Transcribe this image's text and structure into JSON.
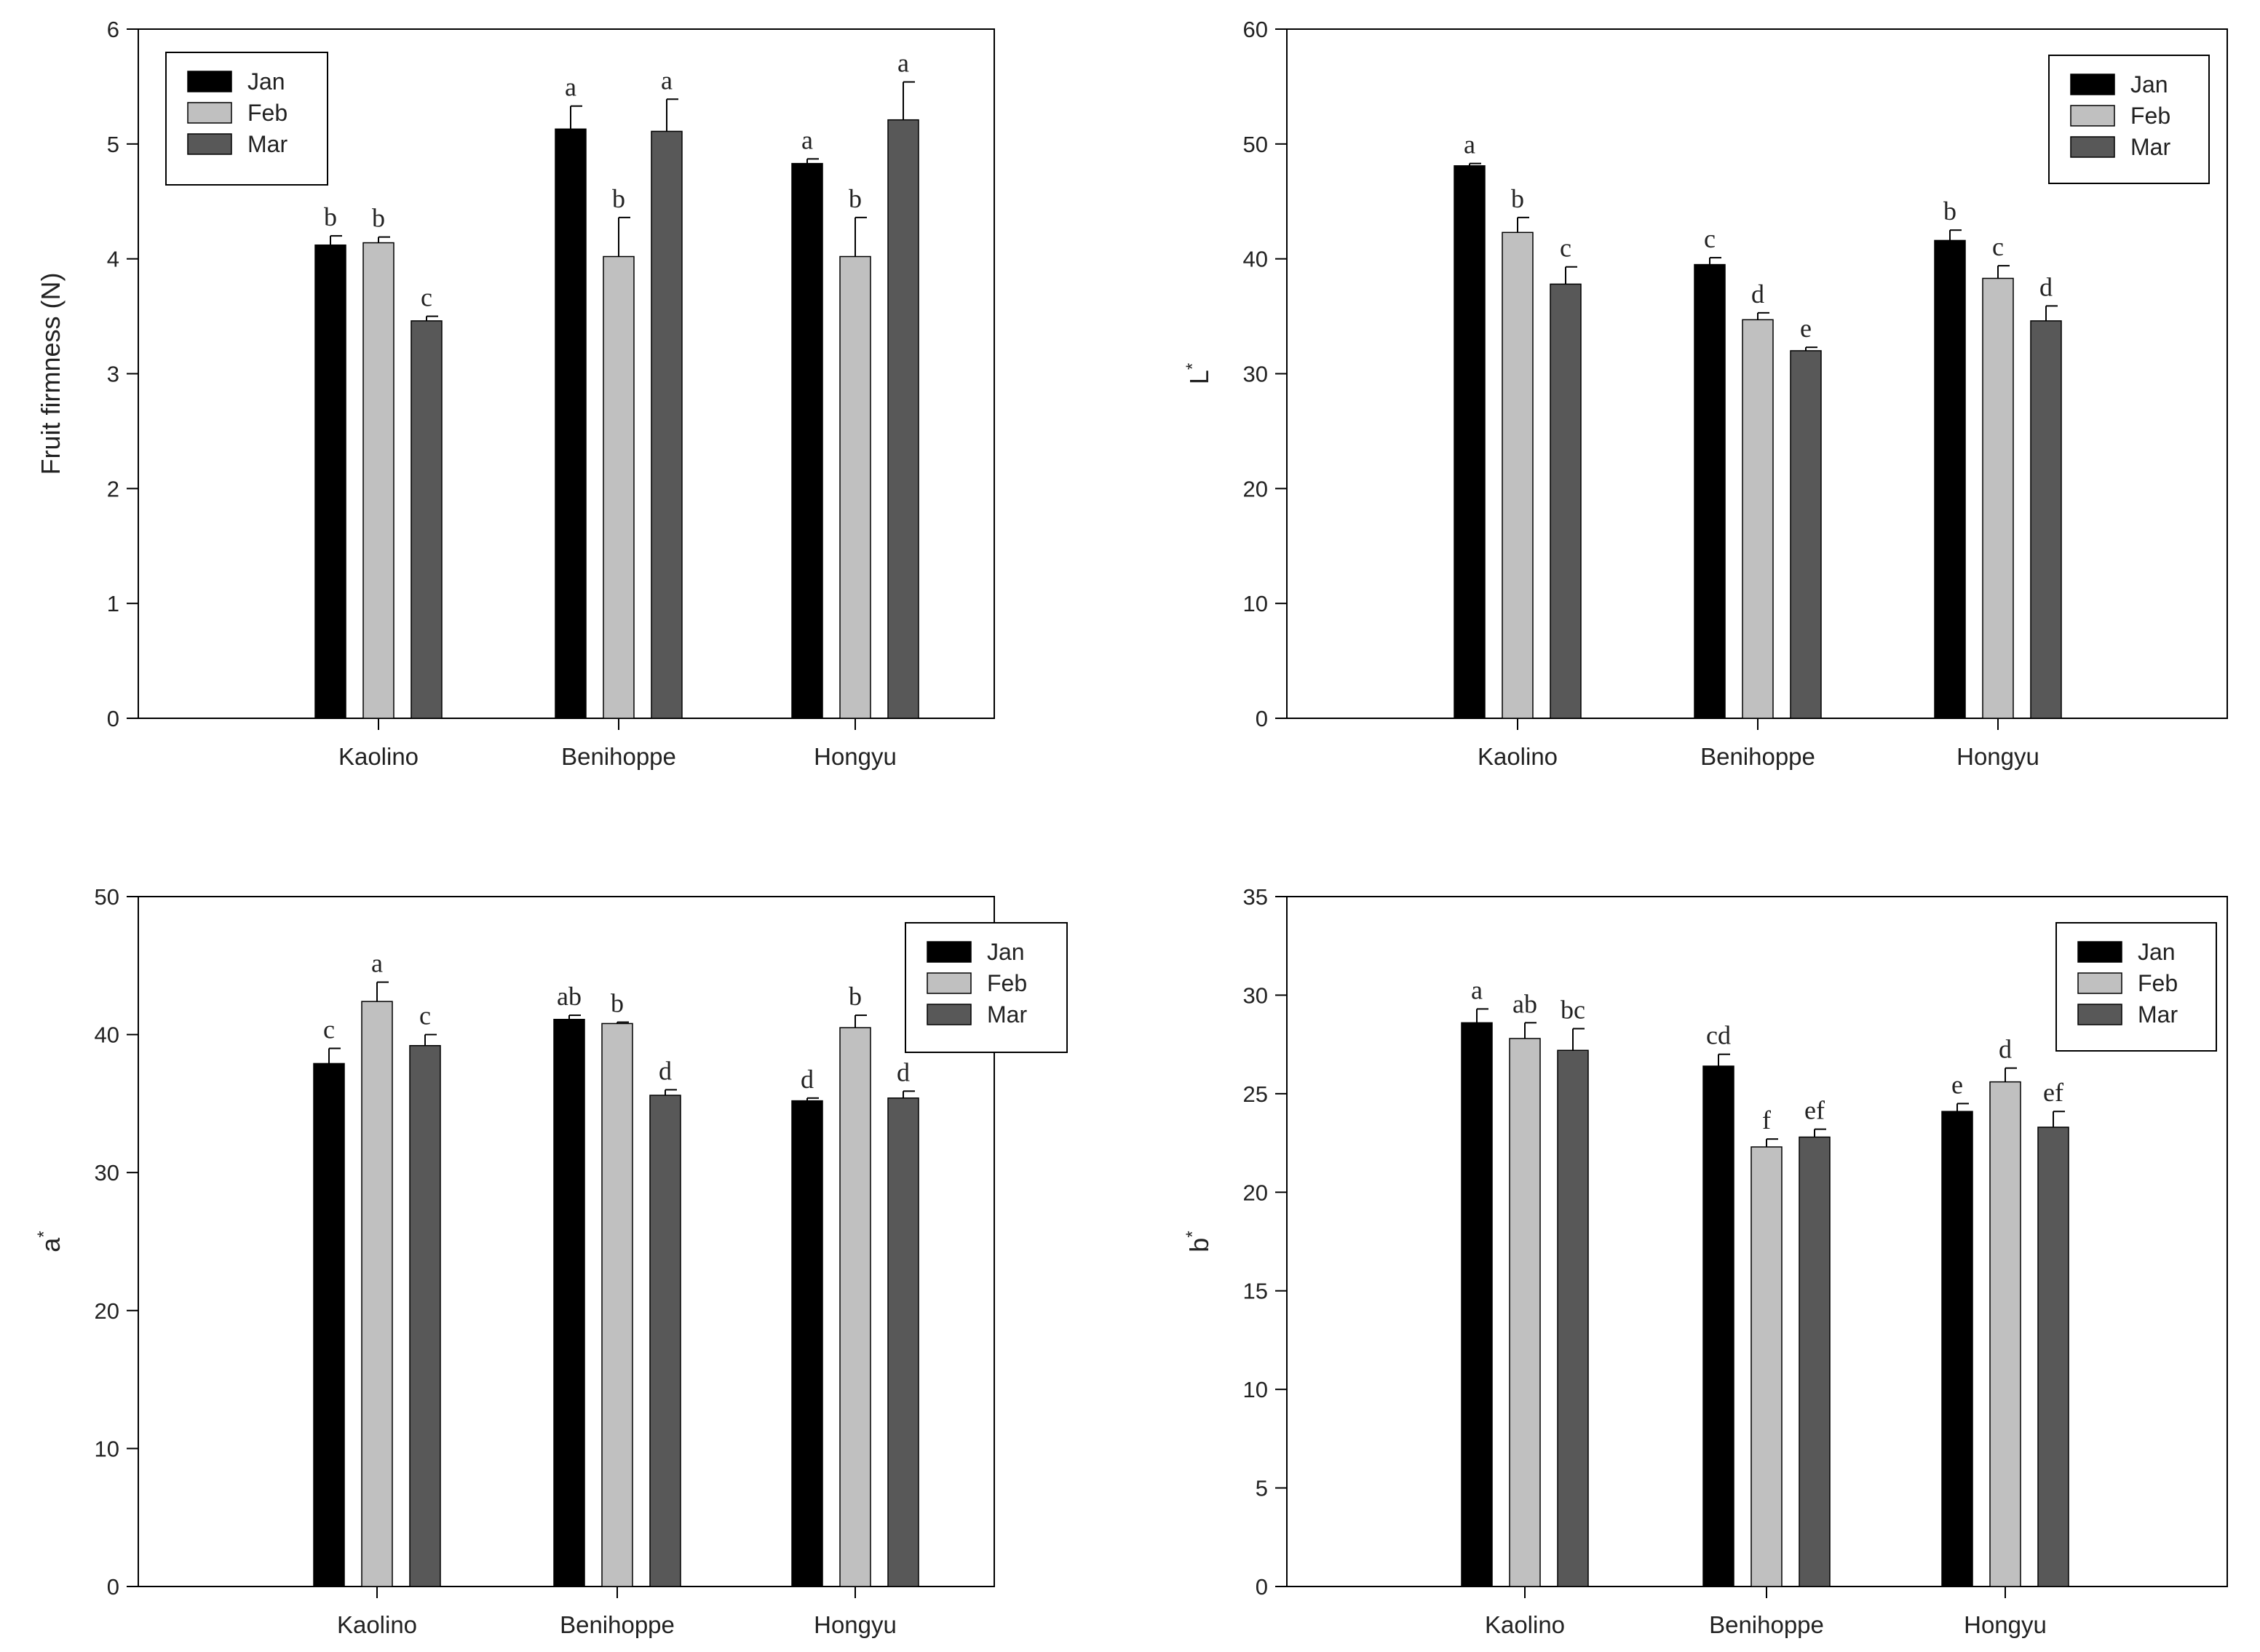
{
  "colors": {
    "Jan": "#000000",
    "Feb": "#c0c0c0",
    "Mar": "#585858",
    "axis": "#000000",
    "text": "#222222"
  },
  "chart_data": [
    {
      "type": "bar",
      "title": "",
      "xlabel": "",
      "ylabel": "Fruit firmness (N)",
      "ylabel_sup": "",
      "ylim": [
        0,
        6
      ],
      "yticks": [
        0,
        1,
        2,
        3,
        4,
        5,
        6
      ],
      "legend_position": "top-left",
      "categories": [
        "Kaolino",
        "Benihoppe",
        "Hongyu"
      ],
      "series": [
        {
          "name": "Jan",
          "values": [
            4.12,
            5.13,
            4.83
          ],
          "errors": [
            0.08,
            0.2,
            0.04
          ],
          "letters": [
            "b",
            "a",
            "a"
          ]
        },
        {
          "name": "Feb",
          "values": [
            4.14,
            4.02,
            4.02
          ],
          "errors": [
            0.05,
            0.34,
            0.34
          ],
          "letters": [
            "b",
            "b",
            "b"
          ]
        },
        {
          "name": "Mar",
          "values": [
            3.46,
            5.11,
            5.21
          ],
          "errors": [
            0.04,
            0.28,
            0.33
          ],
          "letters": [
            "c",
            "a",
            "a"
          ]
        }
      ]
    },
    {
      "type": "bar",
      "title": "",
      "xlabel": "",
      "ylabel": "L",
      "ylabel_sup": "*",
      "ylim": [
        0,
        60
      ],
      "yticks": [
        0,
        10,
        20,
        30,
        40,
        50,
        60
      ],
      "legend_position": "top-right",
      "categories": [
        "Kaolino",
        "Benihoppe",
        "Hongyu"
      ],
      "series": [
        {
          "name": "Jan",
          "values": [
            48.1,
            39.5,
            41.6
          ],
          "errors": [
            0.2,
            0.6,
            0.9
          ],
          "letters": [
            "a",
            "c",
            "b"
          ]
        },
        {
          "name": "Feb",
          "values": [
            42.3,
            34.7,
            38.3
          ],
          "errors": [
            1.3,
            0.6,
            1.1
          ],
          "letters": [
            "b",
            "d",
            "c"
          ]
        },
        {
          "name": "Mar",
          "values": [
            37.8,
            32.0,
            34.6
          ],
          "errors": [
            1.5,
            0.3,
            1.3
          ],
          "letters": [
            "c",
            "e",
            "d"
          ]
        }
      ]
    },
    {
      "type": "bar",
      "title": "",
      "xlabel": "",
      "ylabel": "a",
      "ylabel_sup": "*",
      "ylim": [
        0,
        50
      ],
      "yticks": [
        0,
        10,
        20,
        30,
        40,
        50
      ],
      "legend_position": "top-right",
      "categories": [
        "Kaolino",
        "Benihoppe",
        "Hongyu"
      ],
      "series": [
        {
          "name": "Jan",
          "values": [
            37.9,
            41.1,
            35.2
          ],
          "errors": [
            1.1,
            0.3,
            0.2
          ],
          "letters": [
            "c",
            "ab",
            "d"
          ]
        },
        {
          "name": "Feb",
          "values": [
            42.4,
            40.8,
            40.5
          ],
          "errors": [
            1.4,
            0.1,
            0.9
          ],
          "letters": [
            "a",
            "b",
            "b"
          ]
        },
        {
          "name": "Mar",
          "values": [
            39.2,
            35.6,
            35.4
          ],
          "errors": [
            0.8,
            0.4,
            0.5
          ],
          "letters": [
            "c",
            "d",
            "d"
          ]
        }
      ]
    },
    {
      "type": "bar",
      "title": "",
      "xlabel": "",
      "ylabel": "b",
      "ylabel_sup": "*",
      "ylim": [
        0,
        35
      ],
      "yticks": [
        0,
        5,
        10,
        15,
        20,
        25,
        30,
        35
      ],
      "legend_position": "top-right",
      "categories": [
        "Kaolino",
        "Benihoppe",
        "Hongyu"
      ],
      "series": [
        {
          "name": "Jan",
          "values": [
            28.6,
            26.4,
            24.1
          ],
          "errors": [
            0.7,
            0.6,
            0.4
          ],
          "letters": [
            "a",
            "cd",
            "e"
          ]
        },
        {
          "name": "Feb",
          "values": [
            27.8,
            22.3,
            25.6
          ],
          "errors": [
            0.8,
            0.4,
            0.7
          ],
          "letters": [
            "ab",
            "f",
            "d"
          ]
        },
        {
          "name": "Mar",
          "values": [
            27.2,
            22.8,
            23.3
          ],
          "errors": [
            1.1,
            0.4,
            0.8
          ],
          "letters": [
            "bc",
            "ef",
            "ef"
          ]
        }
      ]
    }
  ]
}
